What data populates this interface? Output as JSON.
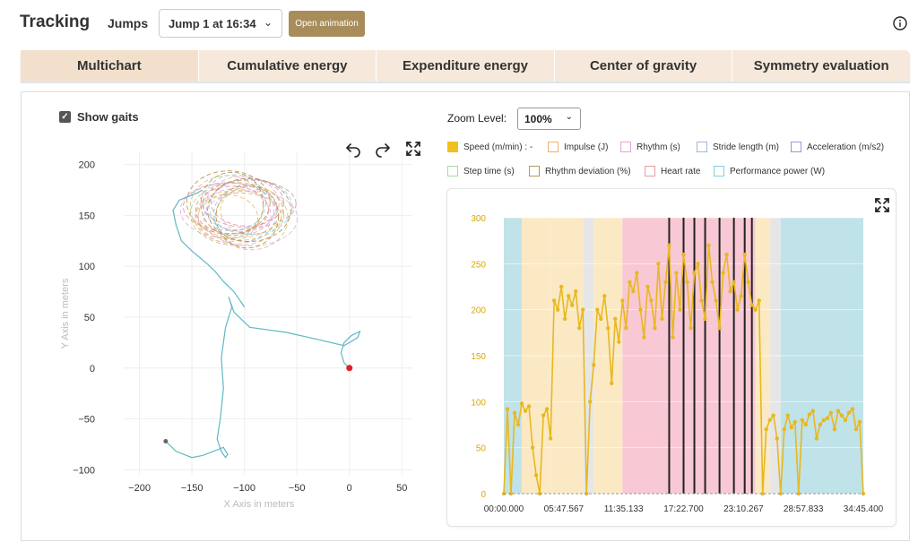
{
  "header": {
    "title": "Tracking",
    "jumps_label": "Jumps",
    "jump_selected": "Jump 1 at 16:34",
    "open_animation": "Open animation"
  },
  "tabs": [
    {
      "label": "Multichart",
      "active": true
    },
    {
      "label": "Cumulative energy",
      "active": false
    },
    {
      "label": "Expenditure energy",
      "active": false
    },
    {
      "label": "Center of gravity",
      "active": false
    },
    {
      "label": "Symmetry evaluation",
      "active": false
    }
  ],
  "left": {
    "show_gaits_label": "Show gaits",
    "show_gaits_checked": true,
    "xlabel": "X Axis in meters",
    "ylabel": "Y Axis in meters",
    "x_ticks": [
      "−200",
      "−150",
      "−100",
      "−50",
      "0",
      "50"
    ],
    "y_ticks": [
      "200",
      "150",
      "100",
      "50",
      "0",
      "−50",
      "−100"
    ]
  },
  "right": {
    "zoom_label": "Zoom Level:",
    "zoom_value": "100%",
    "legend": [
      {
        "label": "Speed (m/min) : -",
        "color": "#f0c020",
        "filled": true
      },
      {
        "label": "Impulse (J)",
        "color": "#f0b070",
        "filled": false
      },
      {
        "label": "Rhythm (s)",
        "color": "#e3a6d8",
        "filled": false
      },
      {
        "label": "Stride length (m)",
        "color": "#9fb7d8",
        "filled": false
      },
      {
        "label": "Acceleration (m/s2)",
        "color": "#b08ad8",
        "filled": false
      },
      {
        "label": "Step time (s)",
        "color": "#a8d8a8",
        "filled": false
      },
      {
        "label": "Rhythm deviation (%)",
        "color": "#b09a60",
        "filled": false
      },
      {
        "label": "Heart rate",
        "color": "#e0a0a0",
        "filled": false
      },
      {
        "label": "Performance power (W)",
        "color": "#7ccfe0",
        "filled": false
      }
    ]
  },
  "chart_data": [
    {
      "type": "line",
      "title": "",
      "xlabel": "X Axis in meters",
      "ylabel": "Y Axis in meters",
      "xlim": [
        -215,
        60
      ],
      "ylim": [
        -105,
        212
      ],
      "x_ticks": [
        -200,
        -150,
        -100,
        -50,
        0,
        50
      ],
      "y_ticks": [
        -100,
        -50,
        0,
        50,
        100,
        150,
        200
      ],
      "grid": true,
      "path": {
        "x": [
          0,
          -5,
          -8,
          -5,
          2,
          10,
          8,
          -5,
          -30,
          -60,
          -95,
          -110,
          -115,
          -112,
          -118,
          -122,
          -120,
          -123,
          -126,
          -122,
          -118,
          -116,
          -120,
          -130,
          -140,
          -150,
          -165,
          -175
        ],
        "y": [
          0,
          5,
          15,
          25,
          32,
          36,
          30,
          22,
          28,
          35,
          40,
          55,
          70,
          60,
          40,
          10,
          -20,
          -50,
          -70,
          -82,
          -88,
          -85,
          -78,
          -82,
          -86,
          -88,
          -82,
          -72
        ]
      },
      "start_point": [
        -175,
        -72
      ],
      "end_point": [
        0,
        0
      ],
      "approach": {
        "x": [
          -100,
          -110,
          -120,
          -128,
          -135,
          -150,
          -160,
          -165,
          -168,
          -162,
          -155,
          -145,
          -140
        ],
        "y": [
          60,
          75,
          85,
          95,
          102,
          115,
          125,
          140,
          155,
          165,
          168,
          172,
          175
        ]
      }
    },
    {
      "type": "line",
      "title": "",
      "xlabel": "",
      "ylabel": "",
      "ylim": [
        0,
        300
      ],
      "y_ticks": [
        0,
        50,
        100,
        150,
        200,
        250,
        300
      ],
      "x_tick_labels": [
        "00:00.000",
        "05:47.567",
        "11:35.133",
        "17:22.700",
        "23:10.267",
        "28:57.833",
        "34:45.400"
      ],
      "x_range_seconds": [
        0,
        2085.4
      ],
      "grid": true,
      "bands": [
        {
          "start": 0,
          "end": 0.05,
          "color": "#bfe3e8"
        },
        {
          "start": 0.05,
          "end": 0.13,
          "color": "#fbe9c4"
        },
        {
          "start": 0.13,
          "end": 0.22,
          "color": "#fbe9c4"
        },
        {
          "start": 0.22,
          "end": 0.25,
          "color": "#e6e6e6"
        },
        {
          "start": 0.25,
          "end": 0.33,
          "color": "#fbe9c4"
        },
        {
          "start": 0.33,
          "end": 0.7,
          "color": "#f8c8d4"
        },
        {
          "start": 0.7,
          "end": 0.74,
          "color": "#fbe9c4"
        },
        {
          "start": 0.74,
          "end": 0.77,
          "color": "#e6e6e6"
        },
        {
          "start": 0.77,
          "end": 1.0,
          "color": "#bfe3e8"
        }
      ],
      "vlines": [
        0.46,
        0.5,
        0.53,
        0.56,
        0.6,
        0.64,
        0.67,
        0.69
      ],
      "series": [
        {
          "name": "Speed (m/min)",
          "color": "#e8b820",
          "x": [
            0.0,
            0.01,
            0.02,
            0.03,
            0.04,
            0.05,
            0.06,
            0.07,
            0.08,
            0.09,
            0.1,
            0.11,
            0.12,
            0.13,
            0.14,
            0.15,
            0.16,
            0.17,
            0.18,
            0.19,
            0.2,
            0.21,
            0.22,
            0.23,
            0.24,
            0.25,
            0.26,
            0.27,
            0.28,
            0.29,
            0.3,
            0.31,
            0.32,
            0.33,
            0.34,
            0.35,
            0.36,
            0.37,
            0.38,
            0.39,
            0.4,
            0.41,
            0.42,
            0.43,
            0.44,
            0.45,
            0.46,
            0.47,
            0.48,
            0.49,
            0.5,
            0.51,
            0.52,
            0.53,
            0.54,
            0.55,
            0.56,
            0.57,
            0.58,
            0.59,
            0.6,
            0.61,
            0.62,
            0.63,
            0.64,
            0.65,
            0.66,
            0.67,
            0.68,
            0.69,
            0.7,
            0.71,
            0.72,
            0.73,
            0.74,
            0.75,
            0.76,
            0.77,
            0.78,
            0.79,
            0.8,
            0.81,
            0.82,
            0.83,
            0.84,
            0.85,
            0.86,
            0.87,
            0.88,
            0.89,
            0.9,
            0.91,
            0.92,
            0.93,
            0.94,
            0.95,
            0.96,
            0.97,
            0.98,
            0.99,
            1.0
          ],
          "y": [
            0,
            92,
            0,
            88,
            75,
            98,
            90,
            95,
            50,
            20,
            0,
            85,
            92,
            60,
            210,
            200,
            225,
            190,
            215,
            205,
            220,
            180,
            200,
            0,
            100,
            140,
            200,
            190,
            215,
            180,
            120,
            190,
            165,
            210,
            180,
            230,
            220,
            240,
            200,
            170,
            225,
            210,
            180,
            250,
            190,
            230,
            270,
            170,
            240,
            200,
            260,
            230,
            180,
            240,
            250,
            210,
            190,
            270,
            230,
            210,
            180,
            240,
            260,
            220,
            230,
            200,
            215,
            260,
            230,
            205,
            200,
            210,
            0,
            70,
            80,
            85,
            60,
            0,
            70,
            85,
            72,
            78,
            0,
            80,
            75,
            86,
            90,
            60,
            75,
            80,
            82,
            88,
            70,
            90,
            85,
            80,
            88,
            92,
            70,
            78,
            0
          ]
        }
      ]
    }
  ]
}
